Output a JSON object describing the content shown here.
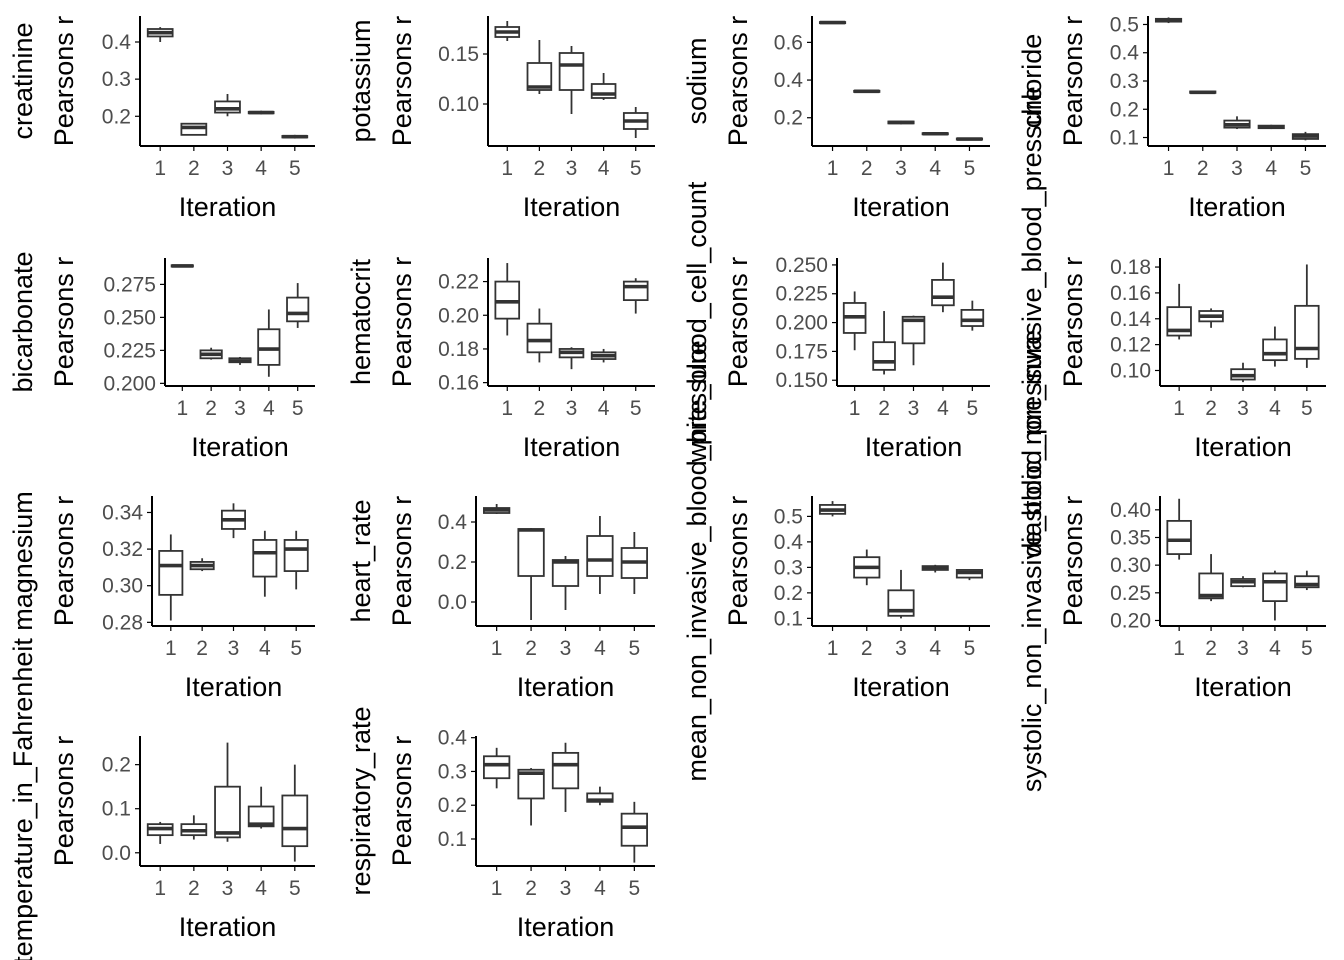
{
  "y_axis_label": "Pearsons r",
  "x_axis_label": "Iteration",
  "colors": {
    "line": "#333333",
    "axis": "#000000",
    "tick_label": "#4d4d4d",
    "box_fill": "#ffffff"
  },
  "chart_data": [
    {
      "type": "box",
      "panel_title": "creatinine",
      "categories": [
        "1",
        "2",
        "3",
        "4",
        "5"
      ],
      "yticks": [
        0.2,
        0.3,
        0.4
      ],
      "ytick_labels": [
        "0.2",
        "0.3",
        "0.4"
      ],
      "ylim": [
        0.12,
        0.47
      ],
      "boxes": [
        {
          "min": 0.4,
          "q1": 0.415,
          "median": 0.425,
          "q3": 0.435,
          "max": 0.44
        },
        {
          "min": 0.15,
          "q1": 0.15,
          "median": 0.17,
          "q3": 0.18,
          "max": 0.18
        },
        {
          "min": 0.2,
          "q1": 0.21,
          "median": 0.22,
          "q3": 0.24,
          "max": 0.26
        },
        {
          "min": 0.205,
          "q1": 0.208,
          "median": 0.21,
          "q3": 0.212,
          "max": 0.215
        },
        {
          "min": 0.14,
          "q1": 0.143,
          "median": 0.145,
          "q3": 0.147,
          "max": 0.15
        }
      ]
    },
    {
      "type": "box",
      "panel_title": "potassium",
      "categories": [
        "1",
        "2",
        "3",
        "4",
        "5"
      ],
      "yticks": [
        0.1,
        0.15
      ],
      "ytick_labels": [
        "0.10",
        "0.15"
      ],
      "ylim": [
        0.058,
        0.188
      ],
      "boxes": [
        {
          "min": 0.163,
          "q1": 0.167,
          "median": 0.172,
          "q3": 0.177,
          "max": 0.183
        },
        {
          "min": 0.11,
          "q1": 0.114,
          "median": 0.117,
          "q3": 0.141,
          "max": 0.164
        },
        {
          "min": 0.09,
          "q1": 0.114,
          "median": 0.139,
          "q3": 0.151,
          "max": 0.158
        },
        {
          "min": 0.104,
          "q1": 0.106,
          "median": 0.11,
          "q3": 0.12,
          "max": 0.131
        },
        {
          "min": 0.066,
          "q1": 0.075,
          "median": 0.083,
          "q3": 0.091,
          "max": 0.097
        }
      ]
    },
    {
      "type": "box",
      "panel_title": "sodium",
      "categories": [
        "1",
        "2",
        "3",
        "4",
        "5"
      ],
      "yticks": [
        0.2,
        0.4,
        0.6
      ],
      "ytick_labels": [
        "0.2",
        "0.4",
        "0.6"
      ],
      "ylim": [
        0.05,
        0.74
      ],
      "boxes": [
        {
          "min": 0.7,
          "q1": 0.702,
          "median": 0.705,
          "q3": 0.708,
          "max": 0.71
        },
        {
          "min": 0.335,
          "q1": 0.337,
          "median": 0.34,
          "q3": 0.343,
          "max": 0.345
        },
        {
          "min": 0.165,
          "q1": 0.17,
          "median": 0.175,
          "q3": 0.18,
          "max": 0.185
        },
        {
          "min": 0.11,
          "q1": 0.112,
          "median": 0.115,
          "q3": 0.118,
          "max": 0.12
        },
        {
          "min": 0.082,
          "q1": 0.084,
          "median": 0.087,
          "q3": 0.09,
          "max": 0.092
        }
      ]
    },
    {
      "type": "box",
      "panel_title": "chloride",
      "categories": [
        "1",
        "2",
        "3",
        "4",
        "5"
      ],
      "yticks": [
        0.1,
        0.2,
        0.3,
        0.4,
        0.5
      ],
      "ytick_labels": [
        "0.1",
        "0.2",
        "0.3",
        "0.4",
        "0.5"
      ],
      "ylim": [
        0.07,
        0.53
      ],
      "boxes": [
        {
          "min": 0.505,
          "q1": 0.51,
          "median": 0.515,
          "q3": 0.52,
          "max": 0.525
        },
        {
          "min": 0.255,
          "q1": 0.258,
          "median": 0.26,
          "q3": 0.263,
          "max": 0.266
        },
        {
          "min": 0.13,
          "q1": 0.135,
          "median": 0.145,
          "q3": 0.16,
          "max": 0.175
        },
        {
          "min": 0.13,
          "q1": 0.133,
          "median": 0.138,
          "q3": 0.142,
          "max": 0.145
        },
        {
          "min": 0.09,
          "q1": 0.095,
          "median": 0.105,
          "q3": 0.112,
          "max": 0.12
        }
      ]
    },
    {
      "type": "box",
      "panel_title": "bicarbonate",
      "categories": [
        "1",
        "2",
        "3",
        "4",
        "5"
      ],
      "yticks": [
        0.2,
        0.225,
        0.25,
        0.275
      ],
      "ytick_labels": [
        "0.200",
        "0.225",
        "0.250",
        "0.275"
      ],
      "ylim": [
        0.198,
        0.295
      ],
      "boxes": [
        {
          "min": 0.288,
          "q1": 0.2885,
          "median": 0.289,
          "q3": 0.2895,
          "max": 0.29
        },
        {
          "min": 0.218,
          "q1": 0.219,
          "median": 0.222,
          "q3": 0.225,
          "max": 0.227
        },
        {
          "min": 0.214,
          "q1": 0.216,
          "median": 0.217,
          "q3": 0.219,
          "max": 0.22
        },
        {
          "min": 0.205,
          "q1": 0.214,
          "median": 0.226,
          "q3": 0.241,
          "max": 0.256
        },
        {
          "min": 0.242,
          "q1": 0.247,
          "median": 0.253,
          "q3": 0.265,
          "max": 0.276
        }
      ]
    },
    {
      "type": "box",
      "panel_title": "hematocrit",
      "categories": [
        "1",
        "2",
        "3",
        "4",
        "5"
      ],
      "yticks": [
        0.16,
        0.18,
        0.2,
        0.22
      ],
      "ytick_labels": [
        "0.16",
        "0.18",
        "0.20",
        "0.22"
      ],
      "ylim": [
        0.158,
        0.234
      ],
      "boxes": [
        {
          "min": 0.188,
          "q1": 0.198,
          "median": 0.208,
          "q3": 0.22,
          "max": 0.231
        },
        {
          "min": 0.172,
          "q1": 0.178,
          "median": 0.185,
          "q3": 0.195,
          "max": 0.204
        },
        {
          "min": 0.168,
          "q1": 0.175,
          "median": 0.178,
          "q3": 0.18,
          "max": 0.181
        },
        {
          "min": 0.172,
          "q1": 0.174,
          "median": 0.176,
          "q3": 0.178,
          "max": 0.18
        },
        {
          "min": 0.201,
          "q1": 0.209,
          "median": 0.217,
          "q3": 0.22,
          "max": 0.222
        }
      ]
    },
    {
      "type": "box",
      "panel_title": "white_blood_cell_count",
      "categories": [
        "1",
        "2",
        "3",
        "4",
        "5"
      ],
      "yticks": [
        0.15,
        0.175,
        0.2,
        0.225,
        0.25
      ],
      "ytick_labels": [
        "0.150",
        "0.175",
        "0.200",
        "0.225",
        "0.250"
      ],
      "ylim": [
        0.145,
        0.256
      ],
      "boxes": [
        {
          "min": 0.176,
          "q1": 0.191,
          "median": 0.205,
          "q3": 0.217,
          "max": 0.227
        },
        {
          "min": 0.155,
          "q1": 0.159,
          "median": 0.166,
          "q3": 0.183,
          "max": 0.21
        },
        {
          "min": 0.163,
          "q1": 0.182,
          "median": 0.202,
          "q3": 0.205,
          "max": 0.206
        },
        {
          "min": 0.209,
          "q1": 0.215,
          "median": 0.222,
          "q3": 0.237,
          "max": 0.252
        },
        {
          "min": 0.193,
          "q1": 0.197,
          "median": 0.202,
          "q3": 0.211,
          "max": 0.219
        }
      ]
    },
    {
      "type": "box",
      "panel_title": "diastolic_non_invasive_blood_pressure",
      "categories": [
        "1",
        "2",
        "3",
        "4",
        "5"
      ],
      "yticks": [
        0.1,
        0.12,
        0.14,
        0.16,
        0.18
      ],
      "ytick_labels": [
        "0.10",
        "0.12",
        "0.14",
        "0.16",
        "0.18"
      ],
      "ylim": [
        0.088,
        0.187
      ],
      "boxes": [
        {
          "min": 0.124,
          "q1": 0.127,
          "median": 0.131,
          "q3": 0.149,
          "max": 0.167
        },
        {
          "min": 0.133,
          "q1": 0.138,
          "median": 0.142,
          "q3": 0.146,
          "max": 0.148
        },
        {
          "min": 0.091,
          "q1": 0.093,
          "median": 0.096,
          "q3": 0.101,
          "max": 0.106
        },
        {
          "min": 0.103,
          "q1": 0.108,
          "median": 0.113,
          "q3": 0.124,
          "max": 0.134
        },
        {
          "min": 0.102,
          "q1": 0.109,
          "median": 0.117,
          "q3": 0.15,
          "max": 0.182
        }
      ]
    },
    {
      "type": "box",
      "panel_title": "magnesium",
      "categories": [
        "1",
        "2",
        "3",
        "4",
        "5"
      ],
      "yticks": [
        0.28,
        0.3,
        0.32,
        0.34
      ],
      "ytick_labels": [
        "0.28",
        "0.30",
        "0.32",
        "0.34"
      ],
      "ylim": [
        0.278,
        0.349
      ],
      "boxes": [
        {
          "min": 0.281,
          "q1": 0.295,
          "median": 0.311,
          "q3": 0.319,
          "max": 0.328
        },
        {
          "min": 0.308,
          "q1": 0.309,
          "median": 0.311,
          "q3": 0.313,
          "max": 0.315
        },
        {
          "min": 0.326,
          "q1": 0.331,
          "median": 0.336,
          "q3": 0.341,
          "max": 0.345
        },
        {
          "min": 0.294,
          "q1": 0.305,
          "median": 0.318,
          "q3": 0.325,
          "max": 0.33
        },
        {
          "min": 0.298,
          "q1": 0.308,
          "median": 0.32,
          "q3": 0.325,
          "max": 0.33
        }
      ]
    },
    {
      "type": "box",
      "panel_title": "heart_rate",
      "categories": [
        "1",
        "2",
        "3",
        "4",
        "5"
      ],
      "yticks": [
        0.0,
        0.2,
        0.4
      ],
      "ytick_labels": [
        "0.0",
        "0.2",
        "0.4"
      ],
      "ylim": [
        -0.12,
        0.53
      ],
      "boxes": [
        {
          "min": 0.44,
          "q1": 0.445,
          "median": 0.46,
          "q3": 0.47,
          "max": 0.49
        },
        {
          "min": -0.09,
          "q1": 0.13,
          "median": 0.36,
          "q3": 0.365,
          "max": 0.37
        },
        {
          "min": -0.04,
          "q1": 0.08,
          "median": 0.2,
          "q3": 0.21,
          "max": 0.23
        },
        {
          "min": 0.04,
          "q1": 0.13,
          "median": 0.21,
          "q3": 0.33,
          "max": 0.43
        },
        {
          "min": 0.04,
          "q1": 0.12,
          "median": 0.2,
          "q3": 0.27,
          "max": 0.35
        }
      ]
    },
    {
      "type": "box",
      "panel_title": "mean_non_invasive_blood_pressure",
      "categories": [
        "1",
        "2",
        "3",
        "4",
        "5"
      ],
      "yticks": [
        0.1,
        0.2,
        0.3,
        0.4,
        0.5
      ],
      "ytick_labels": [
        "0.1",
        "0.2",
        "0.3",
        "0.4",
        "0.5"
      ],
      "ylim": [
        0.07,
        0.58
      ],
      "boxes": [
        {
          "min": 0.5,
          "q1": 0.51,
          "median": 0.525,
          "q3": 0.545,
          "max": 0.56
        },
        {
          "min": 0.23,
          "q1": 0.26,
          "median": 0.3,
          "q3": 0.34,
          "max": 0.37
        },
        {
          "min": 0.1,
          "q1": 0.11,
          "median": 0.13,
          "q3": 0.21,
          "max": 0.29
        },
        {
          "min": 0.28,
          "q1": 0.29,
          "median": 0.3,
          "q3": 0.305,
          "max": 0.31
        },
        {
          "min": 0.25,
          "q1": 0.26,
          "median": 0.28,
          "q3": 0.29,
          "max": 0.29
        }
      ]
    },
    {
      "type": "box",
      "panel_title": "systolic_non_invasive_blood_pressure",
      "categories": [
        "1",
        "2",
        "3",
        "4",
        "5"
      ],
      "yticks": [
        0.2,
        0.25,
        0.3,
        0.35,
        0.4
      ],
      "ytick_labels": [
        "0.20",
        "0.25",
        "0.30",
        "0.35",
        "0.40"
      ],
      "ylim": [
        0.19,
        0.425
      ],
      "boxes": [
        {
          "min": 0.31,
          "q1": 0.32,
          "median": 0.345,
          "q3": 0.38,
          "max": 0.42
        },
        {
          "min": 0.235,
          "q1": 0.24,
          "median": 0.245,
          "q3": 0.285,
          "max": 0.32
        },
        {
          "min": 0.26,
          "q1": 0.262,
          "median": 0.27,
          "q3": 0.275,
          "max": 0.28
        },
        {
          "min": 0.2,
          "q1": 0.235,
          "median": 0.27,
          "q3": 0.285,
          "max": 0.29
        },
        {
          "min": 0.255,
          "q1": 0.26,
          "median": 0.265,
          "q3": 0.28,
          "max": 0.29
        }
      ]
    },
    {
      "type": "box",
      "panel_title": "temperature_in_Fahrenheit",
      "categories": [
        "1",
        "2",
        "3",
        "4",
        "5"
      ],
      "yticks": [
        0.0,
        0.1,
        0.2
      ],
      "ytick_labels": [
        "0.0",
        "0.1",
        "0.2"
      ],
      "ylim": [
        -0.03,
        0.265
      ],
      "boxes": [
        {
          "min": 0.02,
          "q1": 0.04,
          "median": 0.055,
          "q3": 0.065,
          "max": 0.07
        },
        {
          "min": 0.03,
          "q1": 0.04,
          "median": 0.05,
          "q3": 0.065,
          "max": 0.085
        },
        {
          "min": 0.025,
          "q1": 0.035,
          "median": 0.045,
          "q3": 0.15,
          "max": 0.25
        },
        {
          "min": 0.055,
          "q1": 0.06,
          "median": 0.065,
          "q3": 0.105,
          "max": 0.15
        },
        {
          "min": -0.02,
          "q1": 0.015,
          "median": 0.055,
          "q3": 0.13,
          "max": 0.2
        }
      ]
    },
    {
      "type": "box",
      "panel_title": "respiratory_rate",
      "categories": [
        "1",
        "2",
        "3",
        "4",
        "5"
      ],
      "yticks": [
        0.1,
        0.2,
        0.3,
        0.4
      ],
      "ytick_labels": [
        "0.1",
        "0.2",
        "0.3",
        "0.4"
      ],
      "ylim": [
        0.02,
        0.405
      ],
      "boxes": [
        {
          "min": 0.25,
          "q1": 0.28,
          "median": 0.32,
          "q3": 0.345,
          "max": 0.37
        },
        {
          "min": 0.14,
          "q1": 0.22,
          "median": 0.295,
          "q3": 0.305,
          "max": 0.31
        },
        {
          "min": 0.18,
          "q1": 0.25,
          "median": 0.32,
          "q3": 0.355,
          "max": 0.385
        },
        {
          "min": 0.2,
          "q1": 0.21,
          "median": 0.215,
          "q3": 0.235,
          "max": 0.255
        },
        {
          "min": 0.03,
          "q1": 0.08,
          "median": 0.135,
          "q3": 0.175,
          "max": 0.21
        }
      ]
    }
  ]
}
